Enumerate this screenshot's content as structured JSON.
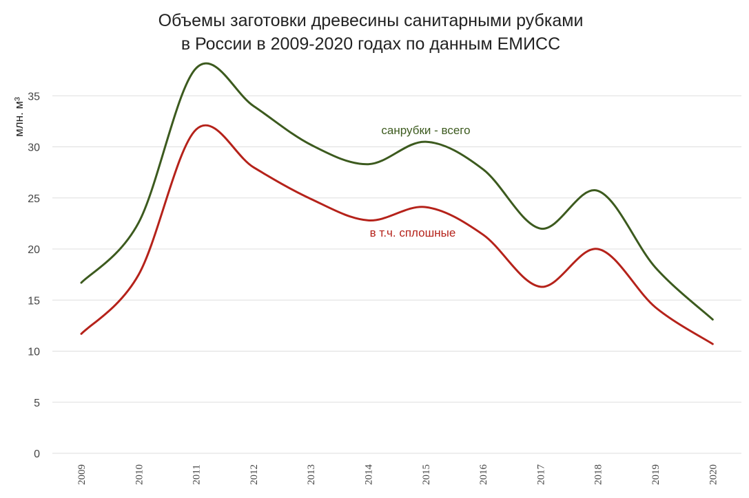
{
  "chart_data": {
    "type": "line",
    "title_lines": [
      "Объемы заготовки древесины санитарными рубками",
      "в России в 2009-2020 годах по данным ЕМИСС"
    ],
    "xlabel": "",
    "ylabel": "млн. м³",
    "x": [
      "2009",
      "2010",
      "2011",
      "2012",
      "2013",
      "2014",
      "2015",
      "2016",
      "2017",
      "2018",
      "2019",
      "2020"
    ],
    "ylim": [
      0,
      35
    ],
    "yticks": [
      0,
      5,
      10,
      15,
      20,
      25,
      30,
      35
    ],
    "grid": true,
    "smooth": true,
    "series": [
      {
        "name": "санрубки - всего",
        "color": "#3c5a1e",
        "values": [
          16.7,
          22.6,
          37.7,
          34.0,
          30.2,
          28.3,
          30.5,
          27.8,
          22.0,
          25.7,
          18.2,
          13.1
        ]
      },
      {
        "name": "в т.ч. сплошные",
        "color": "#b5221a",
        "values": [
          11.7,
          17.5,
          31.7,
          28.0,
          24.9,
          22.8,
          24.1,
          21.4,
          16.3,
          20.0,
          14.3,
          10.7
        ]
      }
    ]
  }
}
